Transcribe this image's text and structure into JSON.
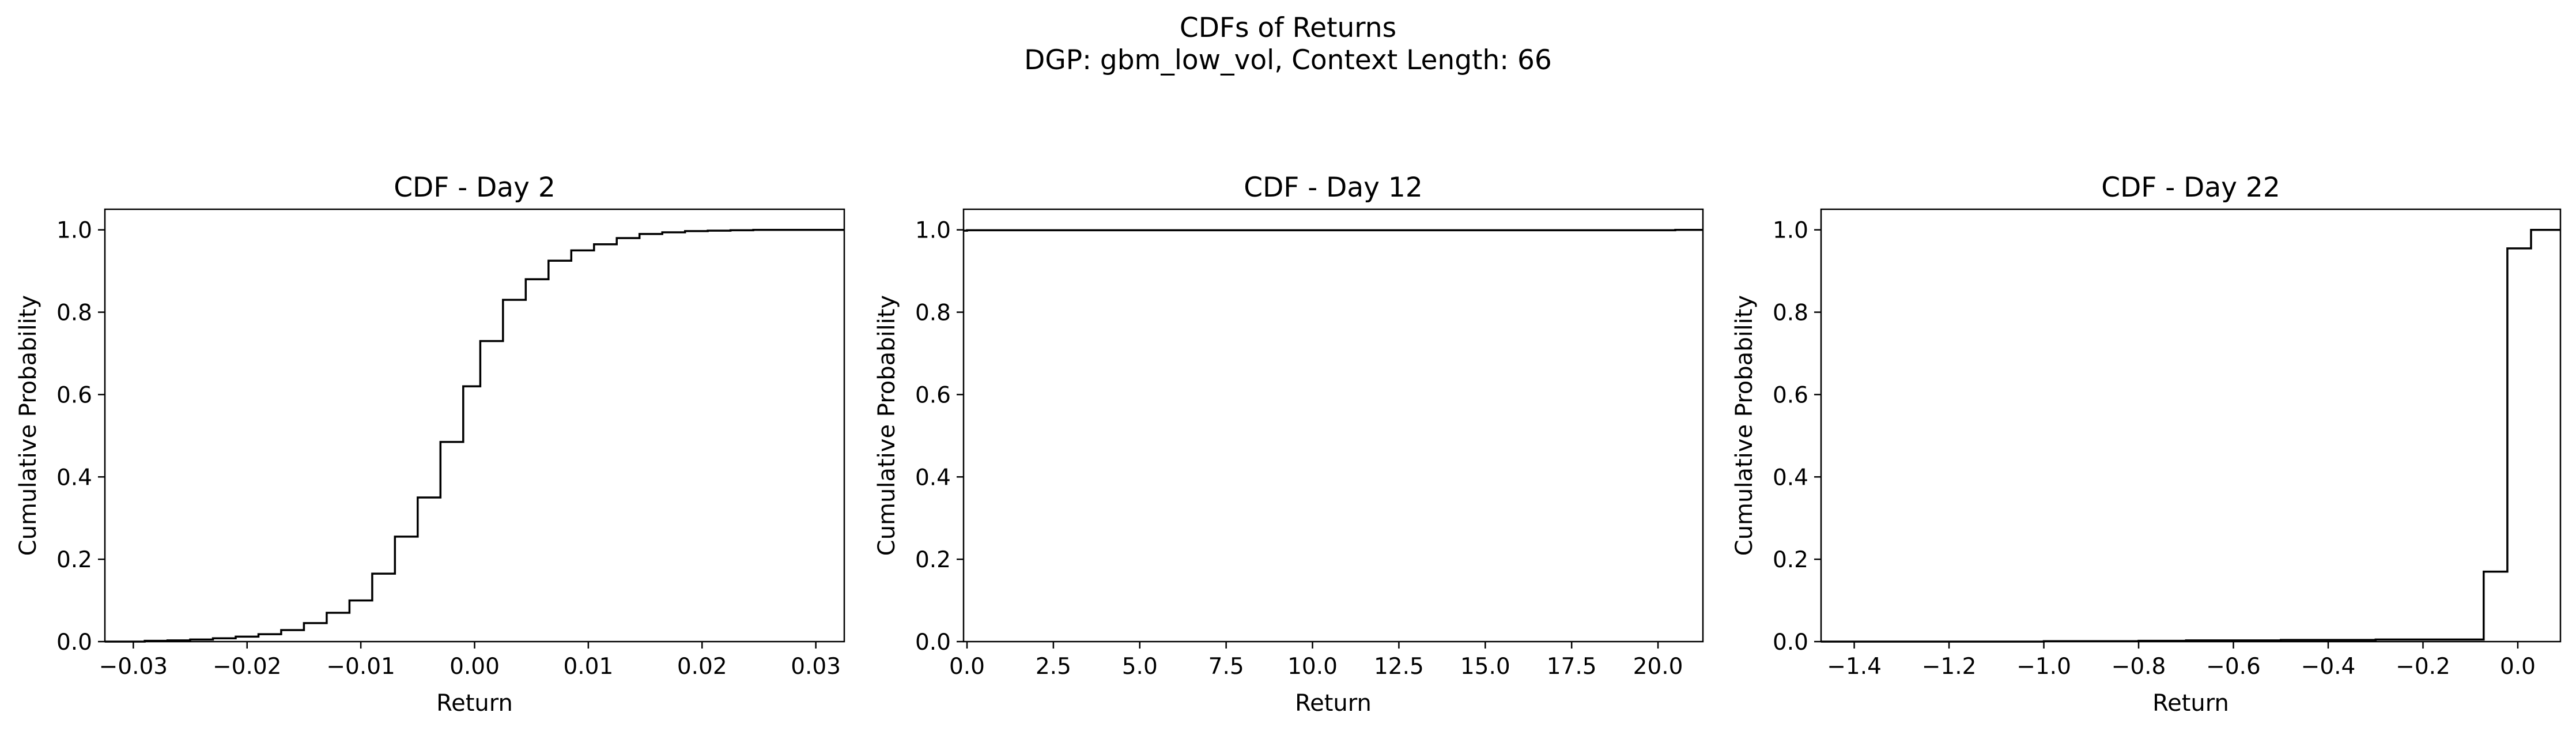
{
  "figure": {
    "title_line1": "CDFs of Returns",
    "title_line2": "DGP: gbm_low_vol, Context Length: 66"
  },
  "chart_data": [
    {
      "type": "line",
      "step": "post",
      "title": "CDF - Day 2",
      "xlabel": "Return",
      "ylabel": "Cumulative Probability",
      "xlim": [
        -0.0325,
        0.0325
      ],
      "ylim": [
        0,
        1.05
      ],
      "xticks": [
        -0.03,
        -0.02,
        -0.01,
        0.0,
        0.01,
        0.02,
        0.03
      ],
      "xtick_labels": [
        "−0.03",
        "−0.02",
        "−0.01",
        "0.00",
        "0.01",
        "0.02",
        "0.03"
      ],
      "yticks": [
        0,
        0.2,
        0.4,
        0.6,
        0.8,
        1.0
      ],
      "ytick_labels": [
        "0.0",
        "0.2",
        "0.4",
        "0.6",
        "0.8",
        "1.0"
      ],
      "series": [
        {
          "x": [
            -0.0325,
            -0.029,
            -0.027,
            -0.025,
            -0.023,
            -0.021,
            -0.019,
            -0.017,
            -0.015,
            -0.013,
            -0.011,
            -0.009,
            -0.007,
            -0.005,
            -0.003,
            -0.001,
            0.0005,
            0.0025,
            0.0045,
            0.0065,
            0.0085,
            0.0105,
            0.0125,
            0.0145,
            0.0165,
            0.0185,
            0.0205,
            0.0225,
            0.0245,
            0.028,
            0.0325
          ],
          "y": [
            0.0,
            0.002,
            0.003,
            0.005,
            0.008,
            0.012,
            0.018,
            0.028,
            0.045,
            0.07,
            0.1,
            0.165,
            0.255,
            0.35,
            0.485,
            0.62,
            0.73,
            0.83,
            0.88,
            0.925,
            0.95,
            0.965,
            0.98,
            0.99,
            0.994,
            0.997,
            0.998,
            0.999,
            1.0,
            1.0,
            1.0
          ]
        }
      ]
    },
    {
      "type": "line",
      "step": "post",
      "title": "CDF - Day 12",
      "xlabel": "Return",
      "ylabel": "Cumulative Probability",
      "xlim": [
        -0.1,
        21.3
      ],
      "ylim": [
        0,
        1.05
      ],
      "xticks": [
        0,
        2.5,
        5,
        7.5,
        10,
        12.5,
        15,
        17.5,
        20
      ],
      "xtick_labels": [
        "0.0",
        "2.5",
        "5.0",
        "7.5",
        "10.0",
        "12.5",
        "15.0",
        "17.5",
        "20.0"
      ],
      "yticks": [
        0,
        0.2,
        0.4,
        0.6,
        0.8,
        1.0
      ],
      "ytick_labels": [
        "0.0",
        "0.2",
        "0.4",
        "0.6",
        "0.8",
        "1.0"
      ],
      "series": [
        {
          "x": [
            -0.1,
            0.0,
            20.5,
            21.3
          ],
          "y": [
            0.998,
            0.999,
            1.0,
            1.0
          ]
        }
      ]
    },
    {
      "type": "line",
      "step": "post",
      "title": "CDF - Day 22",
      "xlabel": "Return",
      "ylabel": "Cumulative Probability",
      "xlim": [
        -1.47,
        0.09
      ],
      "ylim": [
        0,
        1.05
      ],
      "xticks": [
        -1.4,
        -1.2,
        -1.0,
        -0.8,
        -0.6,
        -0.4,
        -0.2,
        0.0
      ],
      "xtick_labels": [
        "−1.4",
        "−1.2",
        "−1.0",
        "−0.8",
        "−0.6",
        "−0.4",
        "−0.2",
        "0.0"
      ],
      "yticks": [
        0,
        0.2,
        0.4,
        0.6,
        0.8,
        1.0
      ],
      "ytick_labels": [
        "0.0",
        "0.2",
        "0.4",
        "0.6",
        "0.8",
        "1.0"
      ],
      "series": [
        {
          "x": [
            -1.47,
            -1.0,
            -0.8,
            -0.7,
            -0.5,
            -0.3,
            -0.072,
            -0.022,
            0.028,
            0.09
          ],
          "y": [
            0.0,
            0.001,
            0.002,
            0.003,
            0.004,
            0.005,
            0.17,
            0.955,
            1.0,
            1.0
          ]
        }
      ]
    }
  ]
}
